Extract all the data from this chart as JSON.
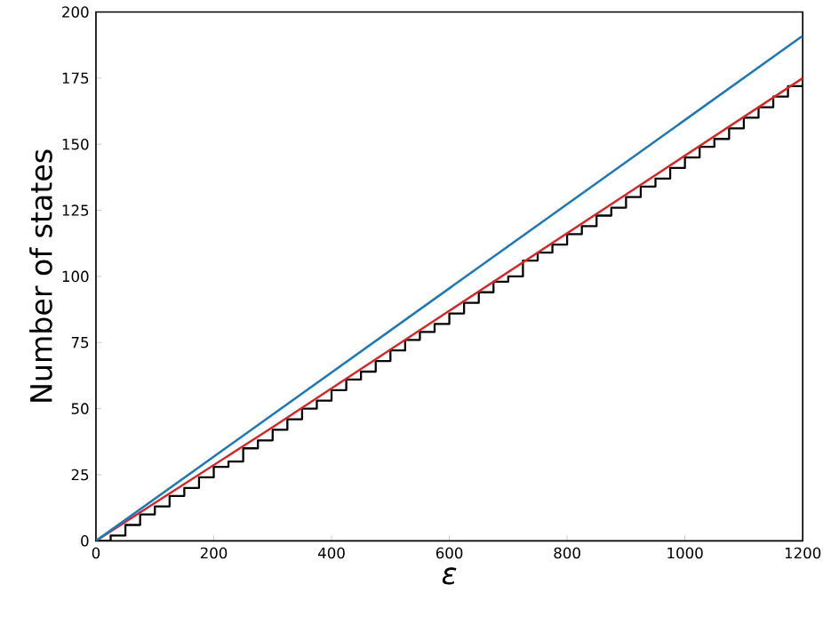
{
  "chart_data": {
    "type": "step",
    "xlabel": "ε",
    "ylabel": "Number of states",
    "xlim": [
      0,
      1200
    ],
    "ylim": [
      0,
      200
    ],
    "xticks": [
      0,
      200,
      400,
      600,
      800,
      1000,
      1200
    ],
    "yticks": [
      0,
      25,
      50,
      75,
      100,
      125,
      150,
      175,
      200
    ],
    "grid": false,
    "series": [
      {
        "color": "#000000",
        "x": [
          0,
          25,
          50,
          75,
          100,
          125,
          150,
          175,
          200,
          225,
          250,
          275,
          300,
          325,
          350,
          375,
          400,
          425,
          450,
          475,
          500,
          525,
          550,
          575,
          600,
          625,
          650,
          675,
          700,
          725,
          750,
          775,
          800,
          825,
          850,
          875,
          900,
          925,
          950,
          975,
          1000,
          1025,
          1050,
          1075,
          1100,
          1125,
          1150,
          1175,
          1200
        ],
        "values": [
          0,
          2,
          6,
          10,
          13,
          17,
          20,
          24,
          28,
          30,
          35,
          38,
          42,
          46,
          50,
          53,
          57,
          61,
          64,
          68,
          72,
          76,
          79,
          82,
          86,
          90,
          94,
          98,
          100,
          106,
          109,
          112,
          116,
          119,
          123,
          126,
          130,
          134,
          137,
          141,
          145,
          149,
          152,
          156,
          160,
          164,
          168,
          172,
          174
        ]
      },
      {
        "type": "line",
        "color": "#d62728",
        "x": [
          0,
          300,
          600,
          900,
          1200
        ],
        "values": [
          0,
          43,
          87,
          131,
          175
        ]
      },
      {
        "type": "line",
        "color": "#1f77b4",
        "x": [
          0,
          1200
        ],
        "values": [
          0,
          191
        ]
      }
    ]
  }
}
